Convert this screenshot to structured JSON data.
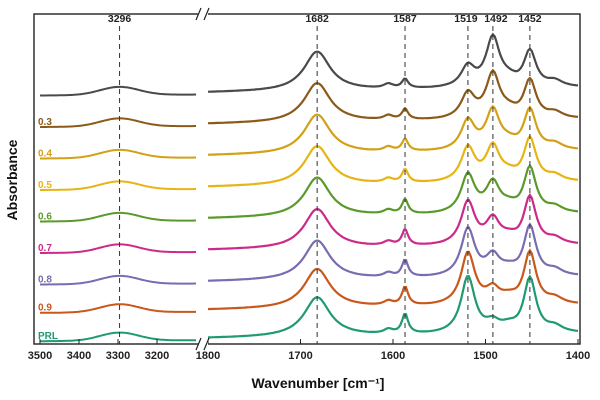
{
  "chart_data": {
    "type": "line",
    "title": "",
    "xlabel": "Wavenumber [cm⁻¹]",
    "ylabel": "Absorbance",
    "x_axis_break": true,
    "x_segments": [
      {
        "range": [
          3500,
          3100
        ],
        "ticks": [
          3500,
          3400,
          3300,
          3200
        ]
      },
      {
        "range": [
          1800,
          1400
        ],
        "ticks": [
          1800,
          1700,
          1600,
          1500,
          1400
        ]
      }
    ],
    "x_tick_labels": [
      "3500",
      "3400",
      "3300",
      "3200",
      "1800",
      "1700",
      "1600",
      "1500",
      "1400"
    ],
    "peak_lines": [
      {
        "x": 3296,
        "label": "3296"
      },
      {
        "x": 1682,
        "label": "1682"
      },
      {
        "x": 1587,
        "label": "1587"
      },
      {
        "x": 1519,
        "label": "1519"
      },
      {
        "x": 1492,
        "label": "1492"
      },
      {
        "x": 1452,
        "label": "1452"
      }
    ],
    "series": [
      {
        "name": "",
        "color": "#4a4a4a",
        "offset": 7,
        "amp_1682": 1.0,
        "amp_1587": 0.35,
        "amp_1519": 0.45,
        "amp_1492": 1.0,
        "amp_1452": 0.75
      },
      {
        "name": "0.3",
        "color": "#8b5a1b",
        "offset": 6,
        "amp_1682": 1.0,
        "amp_1587": 0.4,
        "amp_1519": 0.55,
        "amp_1492": 0.9,
        "amp_1452": 0.8
      },
      {
        "name": "0.4",
        "color": "#d2a115",
        "offset": 5,
        "amp_1682": 1.0,
        "amp_1587": 0.45,
        "amp_1519": 0.65,
        "amp_1492": 0.8,
        "amp_1452": 0.85
      },
      {
        "name": "0.5",
        "color": "#e7b416",
        "offset": 4,
        "amp_1682": 1.0,
        "amp_1587": 0.5,
        "amp_1519": 0.75,
        "amp_1492": 0.7,
        "amp_1452": 0.9
      },
      {
        "name": "0.6",
        "color": "#5a9a2a",
        "offset": 3,
        "amp_1682": 1.0,
        "amp_1587": 0.55,
        "amp_1519": 0.85,
        "amp_1492": 0.6,
        "amp_1452": 0.95
      },
      {
        "name": "0.7",
        "color": "#cc2a8a",
        "offset": 2,
        "amp_1682": 1.0,
        "amp_1587": 0.6,
        "amp_1519": 0.95,
        "amp_1492": 0.5,
        "amp_1452": 1.0
      },
      {
        "name": "0.8",
        "color": "#7b6bb0",
        "offset": 1,
        "amp_1682": 1.0,
        "amp_1587": 0.65,
        "amp_1519": 1.05,
        "amp_1492": 0.4,
        "amp_1452": 1.05
      },
      {
        "name": "0.9",
        "color": "#c8581c",
        "offset": 0.1,
        "amp_1682": 1.0,
        "amp_1587": 0.7,
        "amp_1519": 1.15,
        "amp_1492": 0.3,
        "amp_1452": 1.1
      },
      {
        "name": "PRL",
        "color": "#1f9a72",
        "offset": -0.8,
        "amp_1682": 1.0,
        "amp_1587": 0.75,
        "amp_1519": 1.25,
        "amp_1492": 0.2,
        "amp_1452": 1.15
      }
    ]
  }
}
